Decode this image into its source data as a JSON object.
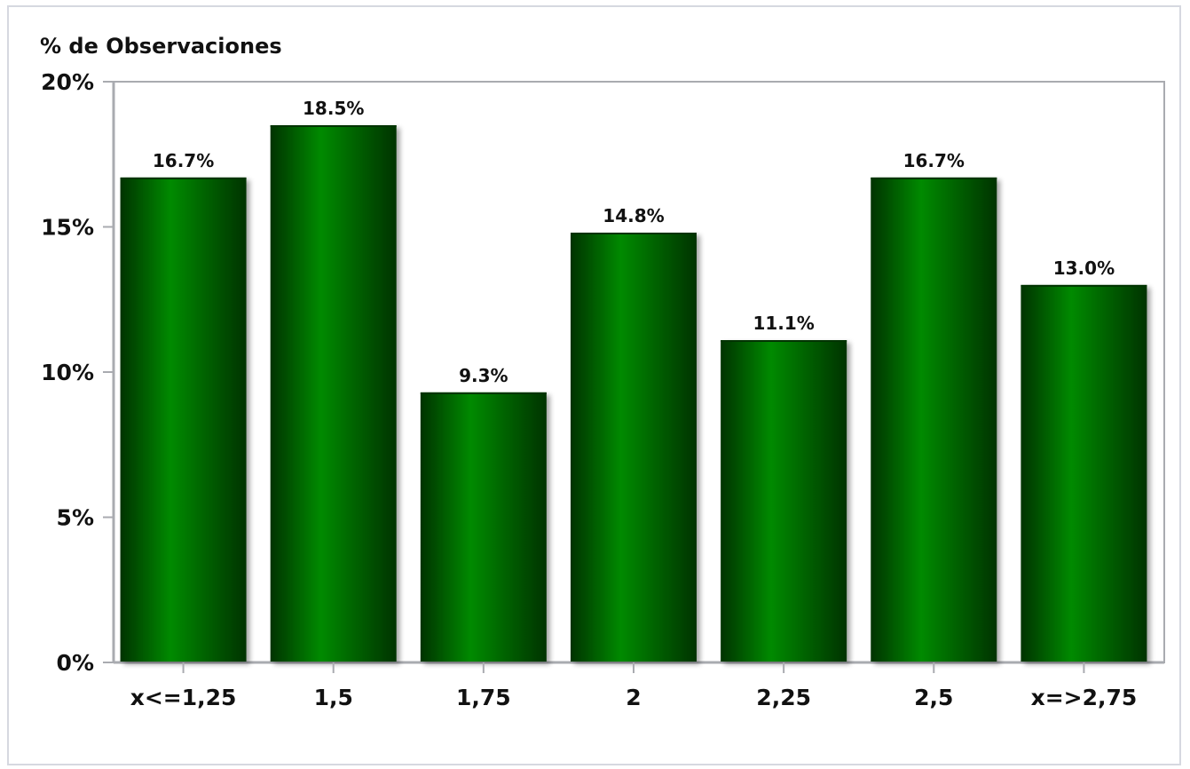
{
  "chart_data": {
    "type": "bar",
    "title": "",
    "ylabel": "% de Observaciones",
    "xlabel": "",
    "categories": [
      "x<=1,25",
      "1,5",
      "1,75",
      "2",
      "2,25",
      "2,5",
      "x=>2,75"
    ],
    "values": [
      16.7,
      18.5,
      9.3,
      14.8,
      11.1,
      16.7,
      13.0
    ],
    "value_labels": [
      "16.7%",
      "18.5%",
      "9.3%",
      "14.8%",
      "11.1%",
      "16.7%",
      "13.0%"
    ],
    "ylim": [
      0,
      20
    ],
    "yticks": [
      0,
      5,
      10,
      15,
      20
    ],
    "ytick_labels": [
      "0%",
      "5%",
      "10%",
      "15%",
      "20%"
    ],
    "grid": false,
    "colors": {
      "bar_dark": "#003300",
      "bar_light": "#008a00",
      "axis": "#a9abb0"
    }
  }
}
